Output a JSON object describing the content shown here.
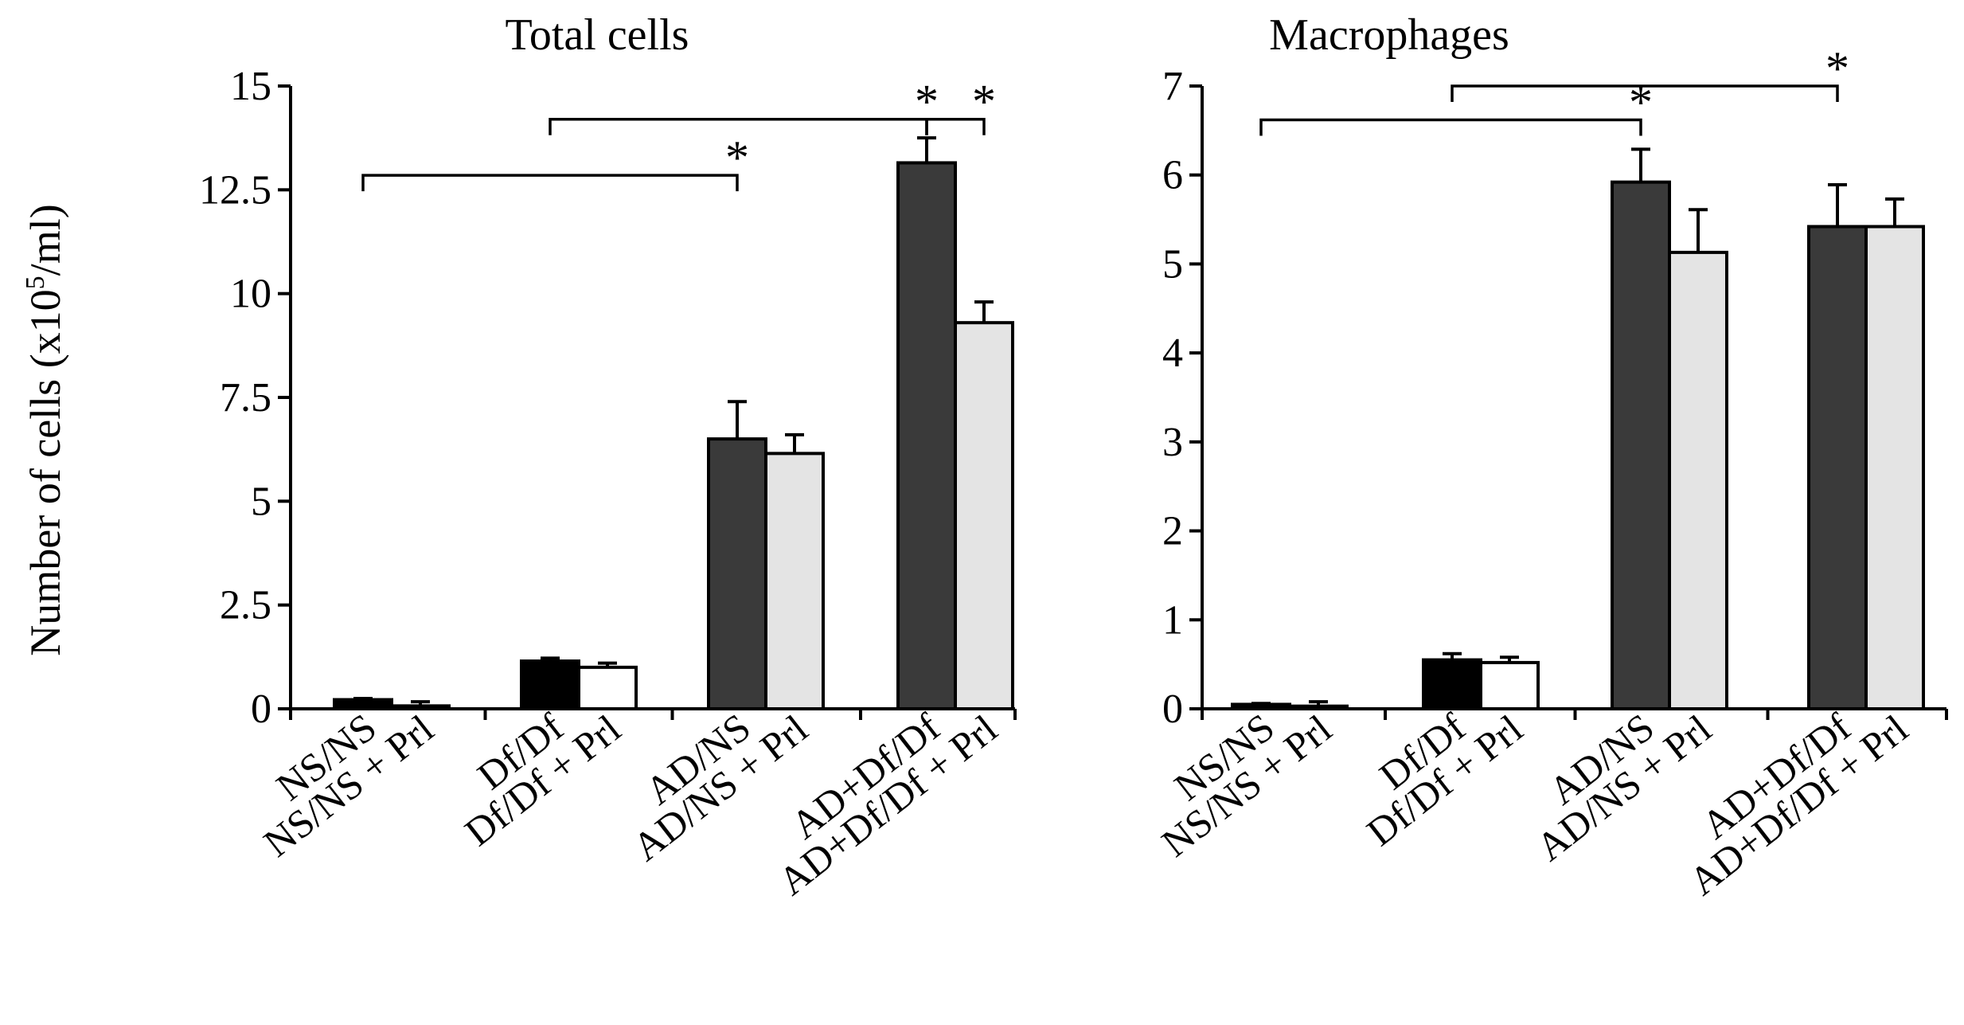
{
  "y_axis_label": "Number of cells (x10",
  "y_axis_label_sup": "5",
  "y_axis_label_end": "/ml)",
  "colors": {
    "untreated_ns": "#000000",
    "treated_ns": "#ffffff",
    "untreated_df": "#000000",
    "treated_df": "#ffffff",
    "untreated_ad": "#3a3a3a",
    "treated_ad": "#e4e4e4",
    "axis": "#000000"
  },
  "chart_data": [
    {
      "type": "bar",
      "title": "Total cells",
      "ylim": [
        0,
        15
      ],
      "yticks": [
        "0",
        "2.5",
        "5",
        "7.5",
        "10",
        "12.5",
        "15"
      ],
      "ytick_values": [
        0,
        2.5,
        5,
        7.5,
        10,
        12.5,
        15
      ],
      "groups": [
        {
          "labels": [
            "NS/NS",
            "NS/NS + Prl"
          ],
          "values": [
            0.22,
            0.07
          ],
          "errors": [
            0.03,
            0.1
          ],
          "fills": [
            "untreated_ns",
            "treated_ns"
          ]
        },
        {
          "labels": [
            "Df/Df",
            "Df/Df + Prl"
          ],
          "values": [
            1.15,
            1.0
          ],
          "errors": [
            0.07,
            0.1
          ],
          "fills": [
            "untreated_df",
            "treated_df"
          ]
        },
        {
          "labels": [
            "AD/NS",
            "AD/NS + Prl"
          ],
          "values": [
            6.5,
            6.15
          ],
          "errors": [
            0.9,
            0.45
          ],
          "fills": [
            "untreated_ad",
            "treated_ad"
          ]
        },
        {
          "labels": [
            "AD+Df/Df",
            "AD+Df/Df + Prl"
          ],
          "values": [
            13.15,
            9.3
          ],
          "errors": [
            0.6,
            0.5
          ],
          "fills": [
            "untreated_ad",
            "treated_ad"
          ]
        }
      ],
      "significance": [
        {
          "from": [
            0,
            0
          ],
          "to": [
            2,
            0
          ],
          "level": 12.85,
          "label": "*"
        },
        {
          "from": [
            1,
            0
          ],
          "to": [
            3,
            0
          ],
          "level": 14.2,
          "label": "*"
        },
        {
          "from": [
            3,
            0
          ],
          "to": [
            3,
            1
          ],
          "level": 14.2,
          "label": "*"
        }
      ]
    },
    {
      "type": "bar",
      "title": "Macrophages",
      "ylim": [
        0,
        7
      ],
      "yticks": [
        "0",
        "1",
        "2",
        "3",
        "4",
        "5",
        "6",
        "7"
      ],
      "ytick_values": [
        0,
        1,
        2,
        3,
        4,
        5,
        6,
        7
      ],
      "groups": [
        {
          "labels": [
            "NS/NS",
            "NS/NS + Prl"
          ],
          "values": [
            0.05,
            0.03
          ],
          "errors": [
            0.01,
            0.05
          ],
          "fills": [
            "untreated_ns",
            "treated_ns"
          ]
        },
        {
          "labels": [
            "Df/Df",
            "Df/Df + Prl"
          ],
          "values": [
            0.55,
            0.52
          ],
          "errors": [
            0.07,
            0.06
          ],
          "fills": [
            "untreated_df",
            "treated_df"
          ]
        },
        {
          "labels": [
            "AD/NS",
            "AD/NS + Prl"
          ],
          "values": [
            5.92,
            5.13
          ],
          "errors": [
            0.37,
            0.48
          ],
          "fills": [
            "untreated_ad",
            "treated_ad"
          ]
        },
        {
          "labels": [
            "AD+Df/Df",
            "AD+Df/Df + Prl"
          ],
          "values": [
            5.42,
            5.42
          ],
          "errors": [
            0.47,
            0.31
          ],
          "fills": [
            "untreated_ad",
            "treated_ad"
          ]
        }
      ],
      "significance": [
        {
          "from": [
            0,
            0
          ],
          "to": [
            2,
            0
          ],
          "level": 6.62,
          "label": "*"
        },
        {
          "from": [
            1,
            0
          ],
          "to": [
            3,
            0
          ],
          "level": 7.0,
          "label": "*"
        }
      ]
    }
  ]
}
